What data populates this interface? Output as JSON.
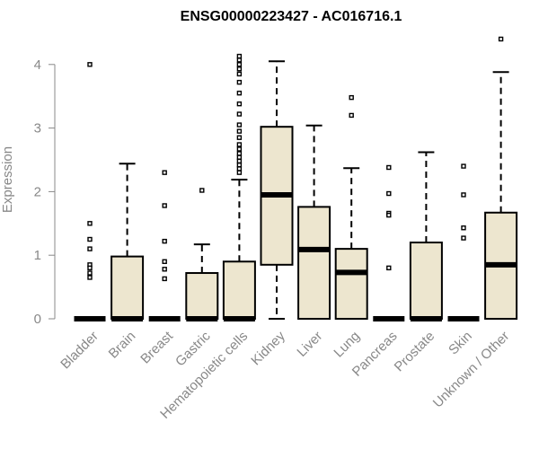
{
  "chart_data": {
    "type": "boxplot",
    "title": "ENSG00000223427 - AC016716.1",
    "ylabel": "Expression",
    "xlabel": "",
    "ylim": [
      0,
      4.4
    ],
    "yticks": [
      0,
      1,
      2,
      3,
      4
    ],
    "categories": [
      "Bladder",
      "Brain",
      "Breast",
      "Gastric",
      "Hematopoietic cells",
      "Kidney",
      "Liver",
      "Lung",
      "Pancreas",
      "Prostate",
      "Skin",
      "Unknown / Other"
    ],
    "box_fill": "#ede6cf",
    "boxes": [
      {
        "category": "Bladder",
        "whisker_low": 0,
        "q1": 0,
        "median": 0,
        "q3": 0,
        "whisker_high": 0,
        "outliers": [
          4.0,
          1.5,
          1.25,
          1.1,
          0.85,
          0.8,
          0.72,
          0.65
        ]
      },
      {
        "category": "Brain",
        "whisker_low": 0,
        "q1": 0,
        "median": 0,
        "q3": 0.98,
        "whisker_high": 2.44,
        "outliers": []
      },
      {
        "category": "Breast",
        "whisker_low": 0,
        "q1": 0,
        "median": 0,
        "q3": 0,
        "whisker_high": 0,
        "outliers": [
          2.3,
          1.78,
          1.22,
          0.9,
          0.78,
          0.63
        ]
      },
      {
        "category": "Gastric",
        "whisker_low": 0,
        "q1": 0,
        "median": 0,
        "q3": 0.72,
        "whisker_high": 1.17,
        "outliers": [
          2.02
        ]
      },
      {
        "category": "Hematopoietic cells",
        "whisker_low": 0,
        "q1": 0,
        "median": 0,
        "q3": 0.9,
        "whisker_high": 2.19,
        "outliers": [
          4.13,
          4.07,
          4.0,
          3.93,
          3.85,
          3.72,
          3.55,
          3.38,
          3.22,
          3.05,
          2.95,
          2.85,
          2.74,
          2.67,
          2.6,
          2.54,
          2.48,
          2.42,
          2.36,
          2.3
        ]
      },
      {
        "category": "Kidney",
        "whisker_low": 0,
        "q1": 0.85,
        "median": 1.95,
        "q3": 3.02,
        "whisker_high": 4.05,
        "outliers": []
      },
      {
        "category": "Liver",
        "whisker_low": 0,
        "q1": 0,
        "median": 1.09,
        "q3": 1.76,
        "whisker_high": 3.04,
        "outliers": []
      },
      {
        "category": "Lung",
        "whisker_low": 0,
        "q1": 0,
        "median": 0.73,
        "q3": 1.1,
        "whisker_high": 2.37,
        "outliers": [
          3.48,
          3.2
        ]
      },
      {
        "category": "Pancreas",
        "whisker_low": 0,
        "q1": 0,
        "median": 0,
        "q3": 0,
        "whisker_high": 0,
        "outliers": [
          2.38,
          1.97,
          1.66,
          1.63,
          0.8
        ]
      },
      {
        "category": "Prostate",
        "whisker_low": 0,
        "q1": 0,
        "median": 0,
        "q3": 1.2,
        "whisker_high": 2.62,
        "outliers": []
      },
      {
        "category": "Skin",
        "whisker_low": 0,
        "q1": 0,
        "median": 0,
        "q3": 0,
        "whisker_high": 0,
        "outliers": [
          2.4,
          1.95,
          1.43,
          1.27
        ]
      },
      {
        "category": "Unknown / Other",
        "whisker_low": 0,
        "q1": 0,
        "median": 0.85,
        "q3": 1.67,
        "whisker_high": 3.88,
        "outliers": [
          4.4
        ]
      }
    ]
  }
}
